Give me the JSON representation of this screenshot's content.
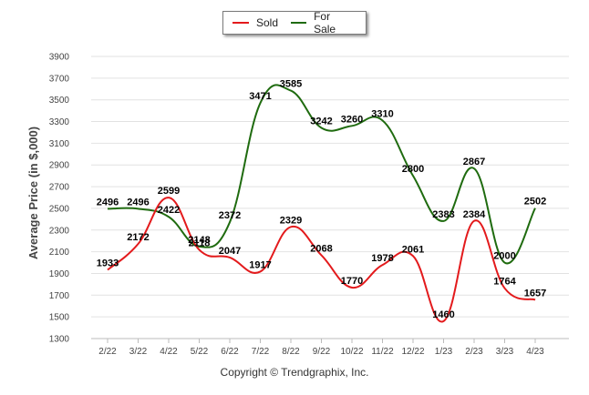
{
  "chart_data": {
    "type": "line",
    "categories": [
      "2/22",
      "3/22",
      "4/22",
      "5/22",
      "6/22",
      "7/22",
      "8/22",
      "9/22",
      "10/22",
      "11/22",
      "12/22",
      "1/23",
      "2/23",
      "3/23",
      "4/23"
    ],
    "series": [
      {
        "name": "Sold",
        "color": "#e31a1c",
        "values": [
          1933,
          2172,
          2599,
          2118,
          2047,
          1917,
          2329,
          2068,
          1770,
          1978,
          2061,
          1460,
          2384,
          1764,
          1657
        ]
      },
      {
        "name": "For Sale",
        "color": "#1f6b0f",
        "values": [
          2496,
          2496,
          2422,
          2148,
          2372,
          3471,
          3585,
          3242,
          3260,
          3310,
          2800,
          2383,
          2867,
          2000,
          2502
        ]
      }
    ],
    "ylabel": "Average Price (in $,000)",
    "xlabel": "",
    "ylim": [
      1300,
      3900
    ],
    "yticks": [
      1300,
      1500,
      1700,
      1900,
      2100,
      2300,
      2500,
      2700,
      2900,
      3100,
      3300,
      3500,
      3700,
      3900
    ],
    "grid": true,
    "legend": "top-center"
  },
  "footer": {
    "copyright": "Copyright © Trendgraphix, Inc."
  }
}
